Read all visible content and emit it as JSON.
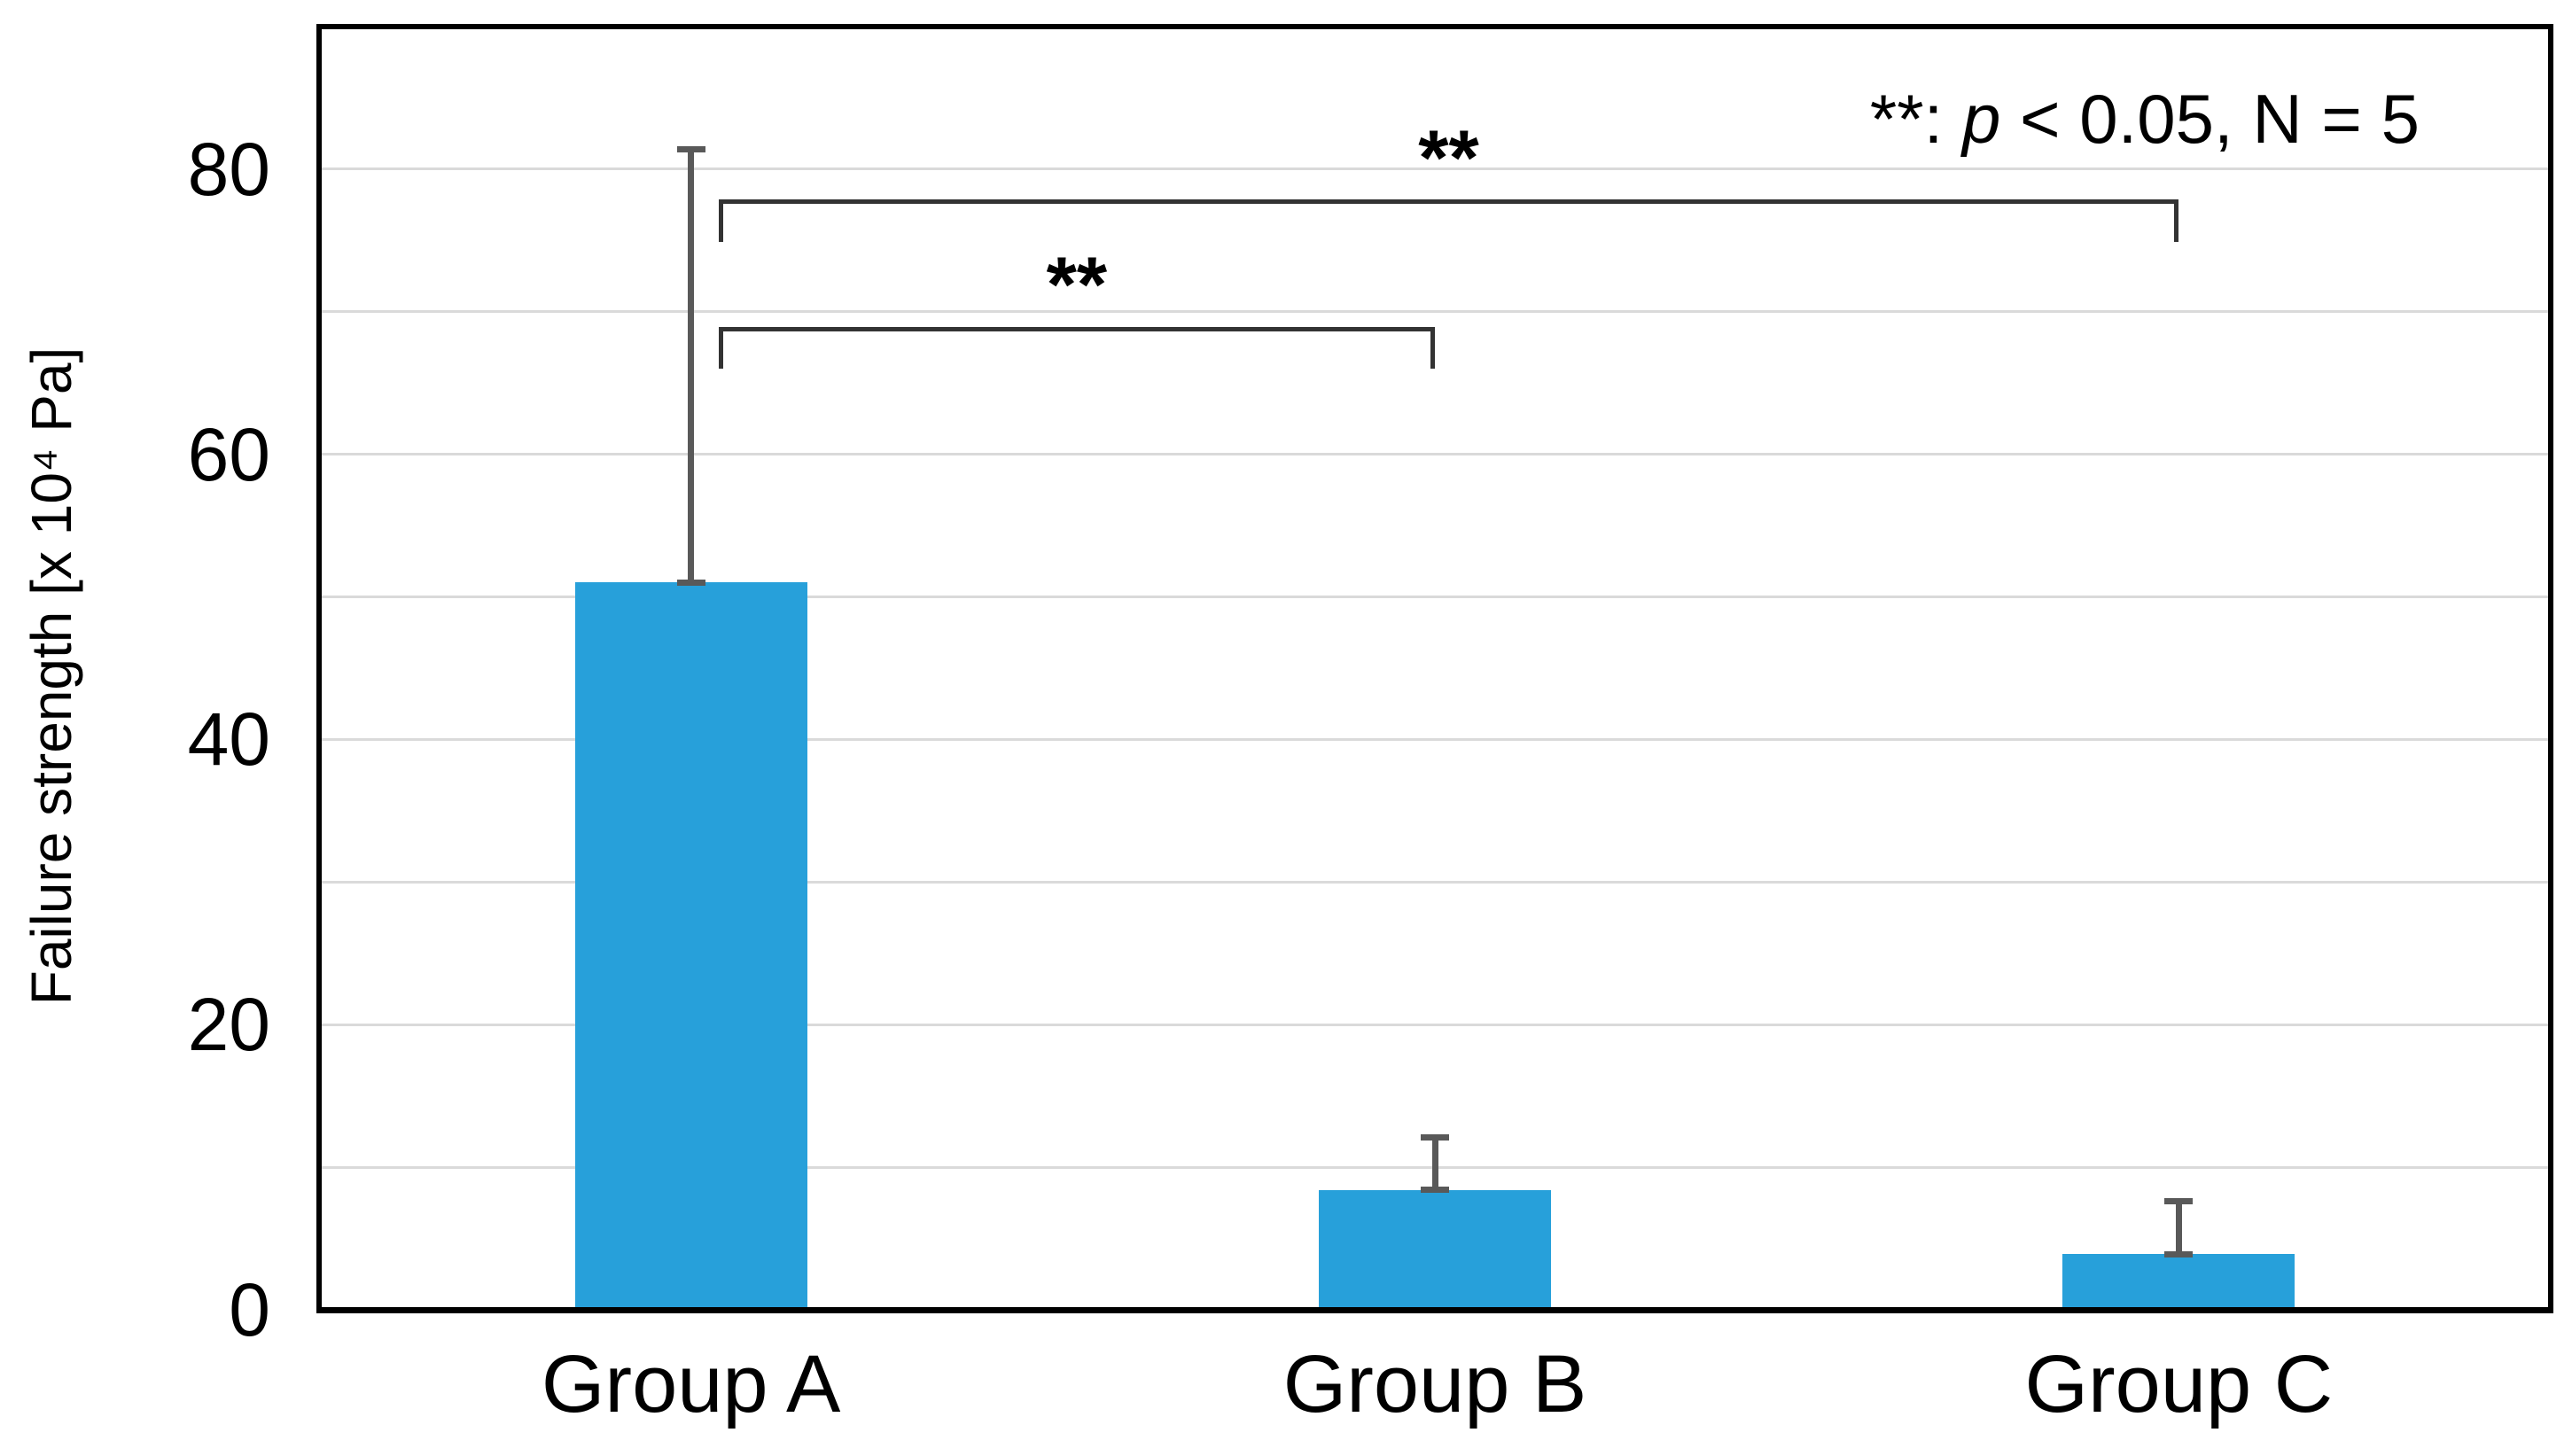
{
  "chart_data": {
    "type": "bar",
    "title": "",
    "categories": [
      "Group A",
      "Group B",
      "Group C"
    ],
    "values": [
      51,
      8.4,
      3.9
    ],
    "error_plus": [
      30.4,
      3.7,
      3.7
    ],
    "error_caps_top": [
      81.4,
      12.1,
      7.6
    ],
    "xlabel": "",
    "ylabel": "Failure strength [x 10⁴ Pa]",
    "ylim": [
      0,
      90
    ],
    "yticks": [
      0,
      20,
      40,
      60,
      80
    ],
    "minor_gridline_step": 10,
    "grid": "horizontal",
    "legend": "none",
    "bar_color": "#27A0DA",
    "error_bar_color": "#595959",
    "bracket_color": "#333333",
    "significance_brackets": [
      {
        "from": 0,
        "to": 1,
        "groups": [
          "Group A",
          "Group B"
        ],
        "y": 68.8,
        "label": "**"
      },
      {
        "from": 0,
        "to": 2,
        "groups": [
          "Group A",
          "Group C"
        ],
        "y": 77.7,
        "label": "**"
      }
    ],
    "annotation": {
      "prefix": "**: ",
      "italic": "p",
      "suffix": " < 0.05, N = 5",
      "full_text": "**: p < 0.05, N = 5"
    }
  }
}
